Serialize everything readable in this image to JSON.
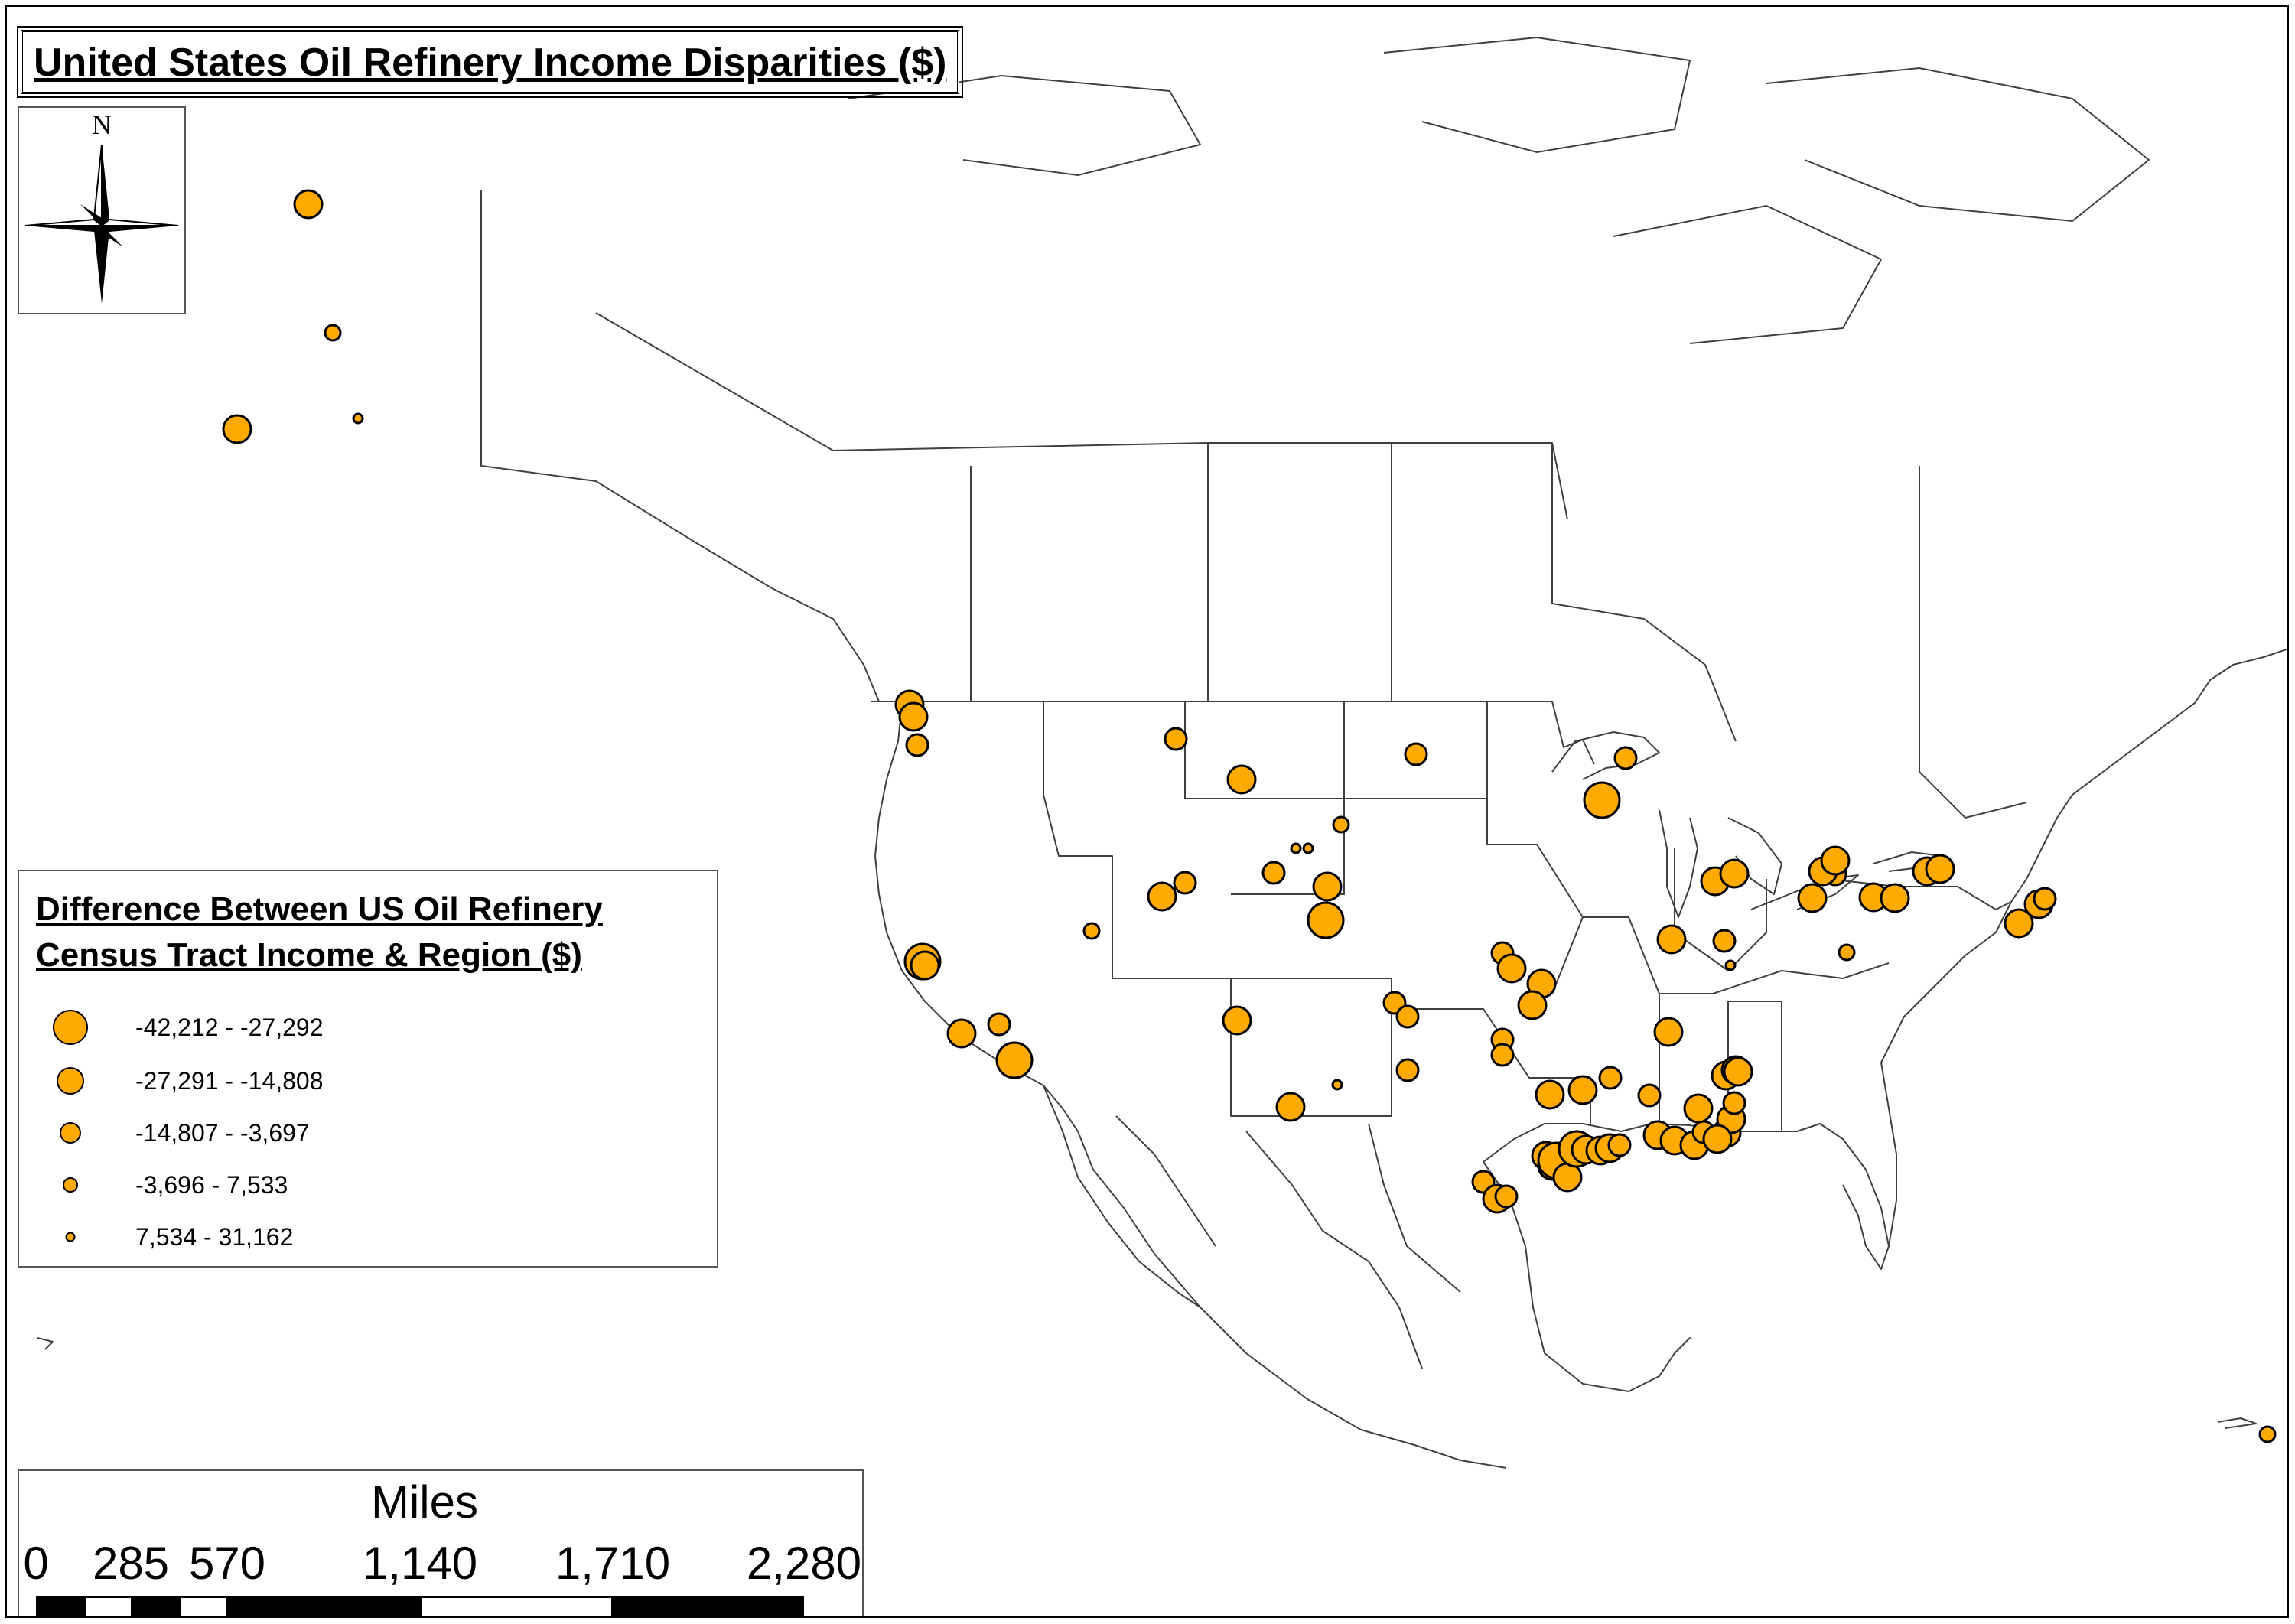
{
  "map": {
    "title": "United States Oil Refinery Income Disparities ($)",
    "north_label": "N",
    "colors": {
      "point_fill": "#ffaa00",
      "point_stroke": "#000000",
      "boundary": "#404040",
      "background": "#ffffff"
    }
  },
  "legend": {
    "title_line1": "Difference Between US Oil Refinery",
    "title_line2": "Census Tract Income & Region ($)",
    "classes": [
      {
        "label": "-42,212 - -27,292"
      },
      {
        "label": "-27,291 - -14,808"
      },
      {
        "label": "-14,807 - -3,697"
      },
      {
        "label": "-3,696 - 7,533"
      },
      {
        "label": "7,534 - 31,162"
      }
    ]
  },
  "scalebar": {
    "title": "Miles",
    "ticks": [
      "0",
      "285",
      "570",
      "1,140",
      "1,710",
      "2,280"
    ]
  }
}
